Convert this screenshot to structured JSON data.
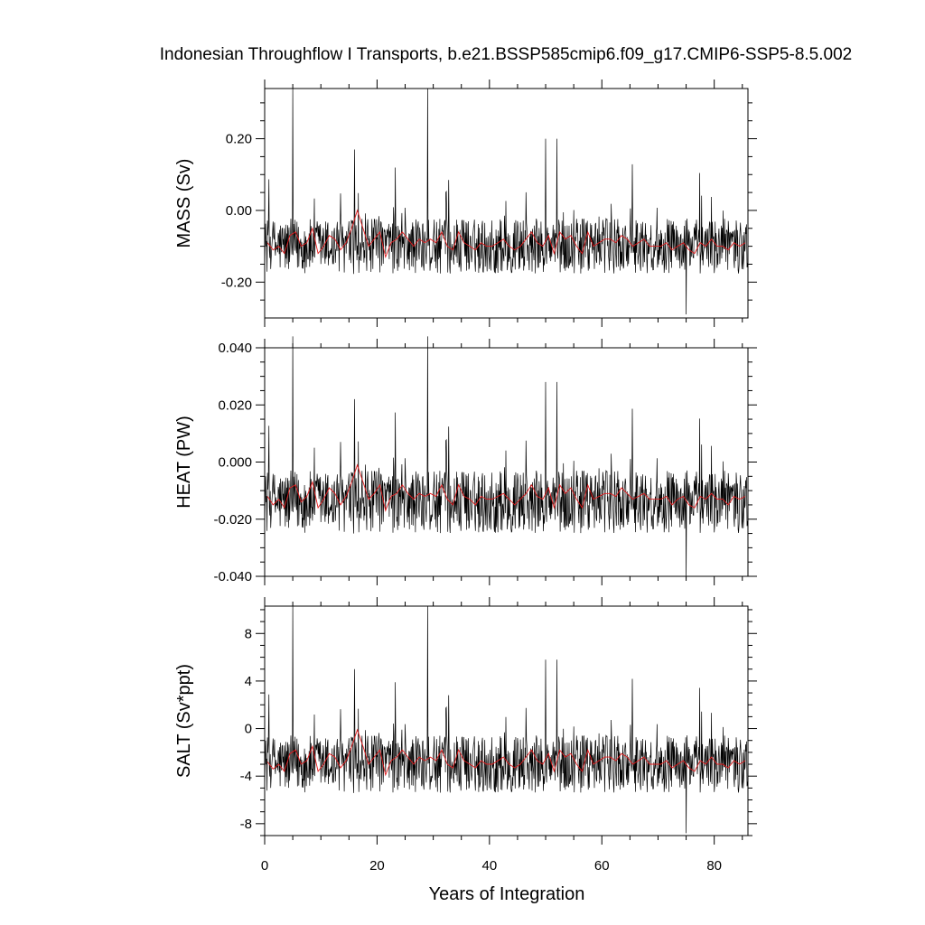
{
  "title": "Indonesian Throughflow I Transports, b.e21.BSSP585cmip6.f09_g17.CMIP6-SSP5-8.5.002",
  "xlabel": "Years of Integration",
  "xticks": [
    "0",
    "20",
    "40",
    "60",
    "80"
  ],
  "colors": {
    "monthly_line": "#000000",
    "annual_line": "#e31a1c",
    "frame": "#000000"
  },
  "chart_data": [
    {
      "type": "line",
      "ylabel": "MASS (Sv)",
      "xlim": [
        0,
        86
      ],
      "ylim": [
        -0.3,
        0.34
      ],
      "yticks": [
        -0.2,
        0.0,
        0.2
      ],
      "ytick_labels": [
        "-0.20",
        "0.00",
        "0.20"
      ],
      "series": [
        {
          "values_kind": "monthly",
          "mean": -0.1,
          "amplitude": 0.07,
          "max": 0.34,
          "min": -0.29,
          "peaks": [
            [
              5.0,
              0.34
            ],
            [
              29.0,
              0.34
            ],
            [
              16.0,
              0.17
            ],
            [
              50.0,
              0.2
            ],
            [
              52.0,
              0.2
            ],
            [
              75.0,
              -0.29
            ]
          ]
        },
        {
          "values_kind": "annual_mean",
          "annual_mean": [
            -0.09,
            -0.11,
            -0.1,
            -0.12,
            -0.07,
            -0.06,
            -0.1,
            -0.09,
            -0.05,
            -0.12,
            -0.1,
            -0.07,
            -0.08,
            -0.11,
            -0.09,
            -0.05,
            -0.0,
            -0.05,
            -0.1,
            -0.08,
            -0.06,
            -0.13,
            -0.09,
            -0.08,
            -0.06,
            -0.08,
            -0.1,
            -0.08,
            -0.09,
            -0.08,
            -0.09,
            -0.06,
            -0.1,
            -0.11,
            -0.06,
            -0.09,
            -0.1,
            -0.11,
            -0.09,
            -0.1,
            -0.1,
            -0.09,
            -0.08,
            -0.1,
            -0.11,
            -0.1,
            -0.08,
            -0.06,
            -0.09,
            -0.1,
            -0.07,
            -0.12,
            -0.06,
            -0.08,
            -0.07,
            -0.1,
            -0.12,
            -0.06,
            -0.1,
            -0.09,
            -0.08,
            -0.08,
            -0.09,
            -0.07,
            -0.08,
            -0.1,
            -0.09,
            -0.08,
            -0.1,
            -0.1,
            -0.1,
            -0.09,
            -0.11,
            -0.1,
            -0.09,
            -0.11,
            -0.12,
            -0.09,
            -0.1,
            -0.08,
            -0.1,
            -0.1,
            -0.11,
            -0.09,
            -0.1,
            -0.09
          ]
        }
      ]
    },
    {
      "type": "line",
      "ylabel": "HEAT (PW)",
      "xlim": [
        0,
        86
      ],
      "ylim": [
        -0.04,
        0.04
      ],
      "yticks": [
        -0.04,
        -0.02,
        0.0,
        0.02,
        0.04
      ],
      "ytick_labels": [
        "-0.040",
        "-0.020",
        "0.000",
        "0.020",
        "0.040"
      ],
      "series": [
        {
          "values_kind": "monthly",
          "mean": -0.014,
          "amplitude": 0.01,
          "max": 0.044,
          "min": -0.041,
          "peaks": [
            [
              5.0,
              0.044
            ],
            [
              29.0,
              0.044
            ],
            [
              16.0,
              0.022
            ],
            [
              50.0,
              0.028
            ],
            [
              52.0,
              0.028
            ],
            [
              75.0,
              -0.041
            ]
          ]
        },
        {
          "values_kind": "annual_mean",
          "annual_mean": [
            -0.012,
            -0.015,
            -0.013,
            -0.016,
            -0.009,
            -0.008,
            -0.014,
            -0.012,
            -0.007,
            -0.016,
            -0.013,
            -0.009,
            -0.011,
            -0.015,
            -0.012,
            -0.007,
            -0.001,
            -0.007,
            -0.013,
            -0.011,
            -0.008,
            -0.017,
            -0.012,
            -0.011,
            -0.008,
            -0.011,
            -0.013,
            -0.011,
            -0.012,
            -0.011,
            -0.012,
            -0.008,
            -0.013,
            -0.015,
            -0.008,
            -0.012,
            -0.013,
            -0.015,
            -0.012,
            -0.013,
            -0.013,
            -0.012,
            -0.011,
            -0.013,
            -0.015,
            -0.013,
            -0.011,
            -0.008,
            -0.012,
            -0.013,
            -0.009,
            -0.016,
            -0.008,
            -0.011,
            -0.009,
            -0.013,
            -0.016,
            -0.008,
            -0.013,
            -0.012,
            -0.011,
            -0.011,
            -0.012,
            -0.009,
            -0.011,
            -0.013,
            -0.012,
            -0.011,
            -0.013,
            -0.013,
            -0.013,
            -0.012,
            -0.015,
            -0.013,
            -0.012,
            -0.015,
            -0.016,
            -0.012,
            -0.013,
            -0.011,
            -0.013,
            -0.013,
            -0.015,
            -0.012,
            -0.013,
            -0.012
          ]
        }
      ]
    },
    {
      "type": "line",
      "ylabel": "SALT (Sv*ppt)",
      "xlim": [
        0,
        86
      ],
      "ylim": [
        -9,
        10.3
      ],
      "yticks": [
        -8,
        -4,
        0,
        4,
        8
      ],
      "ytick_labels": [
        "-8",
        "-4",
        "0",
        "4",
        "8"
      ],
      "series": [
        {
          "values_kind": "monthly",
          "mean": -3.0,
          "amplitude": 2.2,
          "max": 10.3,
          "min": -8.8,
          "peaks": [
            [
              5.0,
              10.3
            ],
            [
              29.0,
              10.3
            ],
            [
              16.0,
              5.0
            ],
            [
              50.0,
              5.8
            ],
            [
              52.0,
              5.8
            ],
            [
              75.0,
              -8.8
            ]
          ]
        },
        {
          "values_kind": "annual_mean",
          "annual_mean": [
            -2.8,
            -3.4,
            -3.0,
            -3.6,
            -2.1,
            -1.8,
            -3.0,
            -2.7,
            -1.5,
            -3.6,
            -3.0,
            -2.1,
            -2.4,
            -3.3,
            -2.7,
            -1.5,
            -0.1,
            -1.5,
            -3.0,
            -2.4,
            -1.8,
            -3.9,
            -2.7,
            -2.4,
            -1.8,
            -2.4,
            -3.0,
            -2.4,
            -2.7,
            -2.4,
            -2.7,
            -1.8,
            -3.0,
            -3.3,
            -1.8,
            -2.7,
            -3.0,
            -3.3,
            -2.7,
            -3.0,
            -3.0,
            -2.7,
            -2.4,
            -3.0,
            -3.3,
            -3.0,
            -2.4,
            -1.8,
            -2.7,
            -3.0,
            -2.1,
            -3.6,
            -1.8,
            -2.4,
            -2.1,
            -3.0,
            -3.6,
            -1.8,
            -3.0,
            -2.7,
            -2.4,
            -2.4,
            -2.7,
            -2.1,
            -2.4,
            -3.0,
            -2.7,
            -2.4,
            -3.0,
            -3.0,
            -3.0,
            -2.7,
            -3.3,
            -3.0,
            -2.7,
            -3.3,
            -3.6,
            -2.7,
            -3.0,
            -2.4,
            -3.0,
            -3.0,
            -3.3,
            -2.7,
            -3.0,
            -2.7
          ]
        }
      ]
    }
  ]
}
